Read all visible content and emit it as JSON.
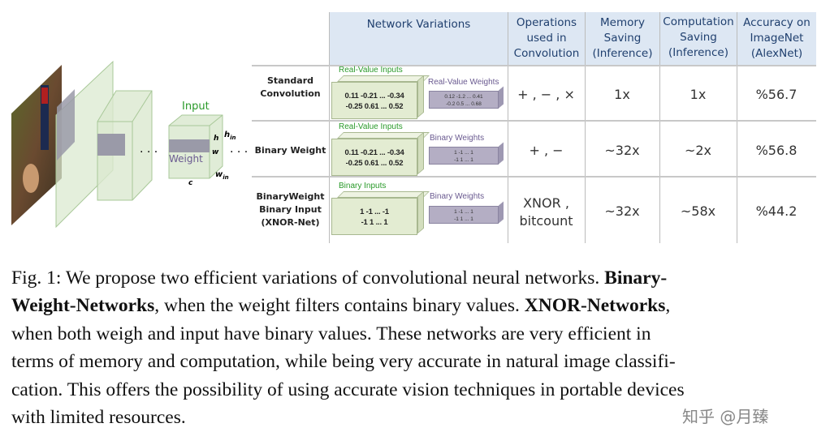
{
  "diagram": {
    "input_label": "Input",
    "weight_label": "Weight",
    "dims": {
      "h": "h",
      "w": "w",
      "h_in": "h",
      "h_in_sub": "in",
      "w_in": "w",
      "w_in_sub": "in",
      "c": "c"
    },
    "dots": ". . .",
    "colors": {
      "green": "#2a9a2a",
      "purple": "#6a5a90",
      "header_bg": "#dde7f3",
      "header_text": "#1f3f6e"
    }
  },
  "table": {
    "headers": [
      "Network Variations",
      "Operations used in Convolution",
      "Memory Saving (Inference)",
      "Computation Saving (Inference)",
      "Accuracy on ImageNet (AlexNet)"
    ],
    "header_lines": [
      [
        "Network Variations"
      ],
      [
        "Operations",
        "used in",
        "Convolution"
      ],
      [
        "Memory",
        "Saving",
        "(Inference)"
      ],
      [
        "Computation",
        "Saving",
        "(Inference)"
      ],
      [
        "Accuracy on",
        "ImageNet",
        "(AlexNet)"
      ]
    ],
    "rows": [
      {
        "label_lines": [
          "Standard",
          "Convolution"
        ],
        "input_label": "Real-Value Inputs",
        "input_lines": [
          "0.11 -0.21 ... -0.34",
          "-0.25 0.61 ... 0.52"
        ],
        "weight_label": "Real-Value Weights",
        "weight_lines": [
          "0.12 -1.2 ... 0.41",
          "-0.2 0.5 ... 0.68"
        ],
        "operations": "+ , − , ×",
        "memory": "1x",
        "computation": "1x",
        "accuracy": "%56.7"
      },
      {
        "label_lines": [
          "Binary Weight"
        ],
        "input_label": "Real-Value Inputs",
        "input_lines": [
          "0.11 -0.21 ... -0.34",
          "-0.25 0.61 ... 0.52"
        ],
        "weight_label": "Binary Weights",
        "weight_lines": [
          "1 -1 ... 1",
          "-1 1 ... 1"
        ],
        "operations": "+ , −",
        "memory": "~32x",
        "computation": "~2x",
        "accuracy": "%56.8"
      },
      {
        "label_lines": [
          "BinaryWeight",
          "Binary Input",
          "(XNOR-Net)"
        ],
        "input_label": "Binary Inputs",
        "input_lines": [
          "1 -1 ... -1",
          "-1 1 ... 1"
        ],
        "weight_label": "Binary Weights",
        "weight_lines": [
          "1 -1 ... 1",
          "-1 1 ... 1"
        ],
        "operations_lines": [
          "XNOR ,",
          "bitcount"
        ],
        "memory": "~32x",
        "computation": "~58x",
        "accuracy": "%44.2"
      }
    ]
  },
  "caption": {
    "lines": [
      [
        {
          "t": "Fig. 1: We propose two efficient variations of convolutional neural networks. "
        },
        {
          "t": "Binary-",
          "b": true
        }
      ],
      [
        {
          "t": "Weight-Networks",
          "b": true
        },
        {
          "t": ", when the weight filters contains binary values. "
        },
        {
          "t": "XNOR-Networks",
          "b": true
        },
        {
          "t": ","
        }
      ],
      [
        {
          "t": "when both weigh and input have binary values. These networks are very efficient in"
        }
      ],
      [
        {
          "t": "terms of memory and computation, while being very accurate in natural image classifi-"
        }
      ],
      [
        {
          "t": "cation. This offers the possibility of using accurate vision techniques in portable devices"
        }
      ],
      [
        {
          "t": "with limited resources."
        }
      ]
    ]
  },
  "watermark": "知乎 @月臻"
}
